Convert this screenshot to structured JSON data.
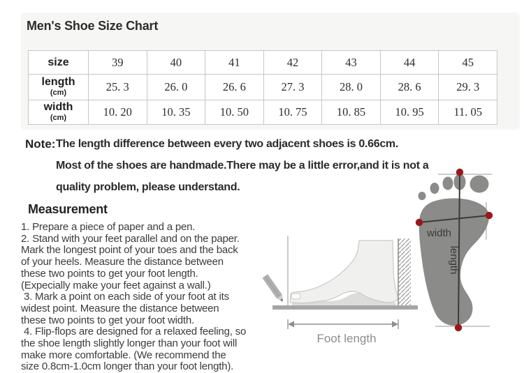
{
  "title": "Men's Shoe Size Chart",
  "size_table": {
    "header_label": "size",
    "sizes": [
      "39",
      "40",
      "41",
      "42",
      "43",
      "44",
      "45"
    ],
    "rows": [
      {
        "label": "length",
        "unit": "(cm)",
        "values": [
          "25. 3",
          "26. 0",
          "26. 6",
          "27. 3",
          "28. 0",
          "28. 6",
          "29. 3"
        ]
      },
      {
        "label": "width",
        "unit": "(cm)",
        "values": [
          "10. 20",
          "10. 35",
          "10. 50",
          "10. 75",
          "10. 85",
          "10. 95",
          "11. 05"
        ]
      }
    ]
  },
  "note": {
    "label": "Note:",
    "lines": [
      "The length difference between every two adjacent shoes is 0.66cm.",
      "Most of the shoes are handmade.There may be a little error,and it is not a",
      "quality problem, please understand."
    ]
  },
  "measurement": {
    "heading": "Measurement",
    "lines": [
      "1. Prepare a piece of paper and a pen.",
      "2. Stand with your feet parallel and on the paper.",
      "Mark the longest point of your toes and the back",
      "of your heels. Measure the distance between",
      "these two points to get your foot length.",
      "(Expecially make your feet against a wall.)",
      " 3. Mark a point on each side of your foot at its",
      "widest point. Measure the distance between",
      "these two points to get your foot width.",
      " 4. Flip-flops are designed for a relaxed feeling, so",
      "the shoe length slightly longer than your foot will",
      "make more comfortable. (We recommend the",
      "size 0.8cm-1.0cm longer than your foot length)."
    ]
  },
  "diagram": {
    "foot_length_label": "Foot length",
    "width_label": "width",
    "length_label": "length",
    "colors": {
      "footprint": "#8b8b89",
      "marker_red": "#9a181b",
      "measure_line": "#3a3a38",
      "guide_line": "#aeaeac",
      "side_foot_fill": "#f0f0ee",
      "side_foot_stroke": "#c9c9c6",
      "sole_shadow": "#dcdcda",
      "ground": "#a5a5a3",
      "annotation": "#8e8e8c",
      "pencil": "#b0b0ae"
    }
  }
}
